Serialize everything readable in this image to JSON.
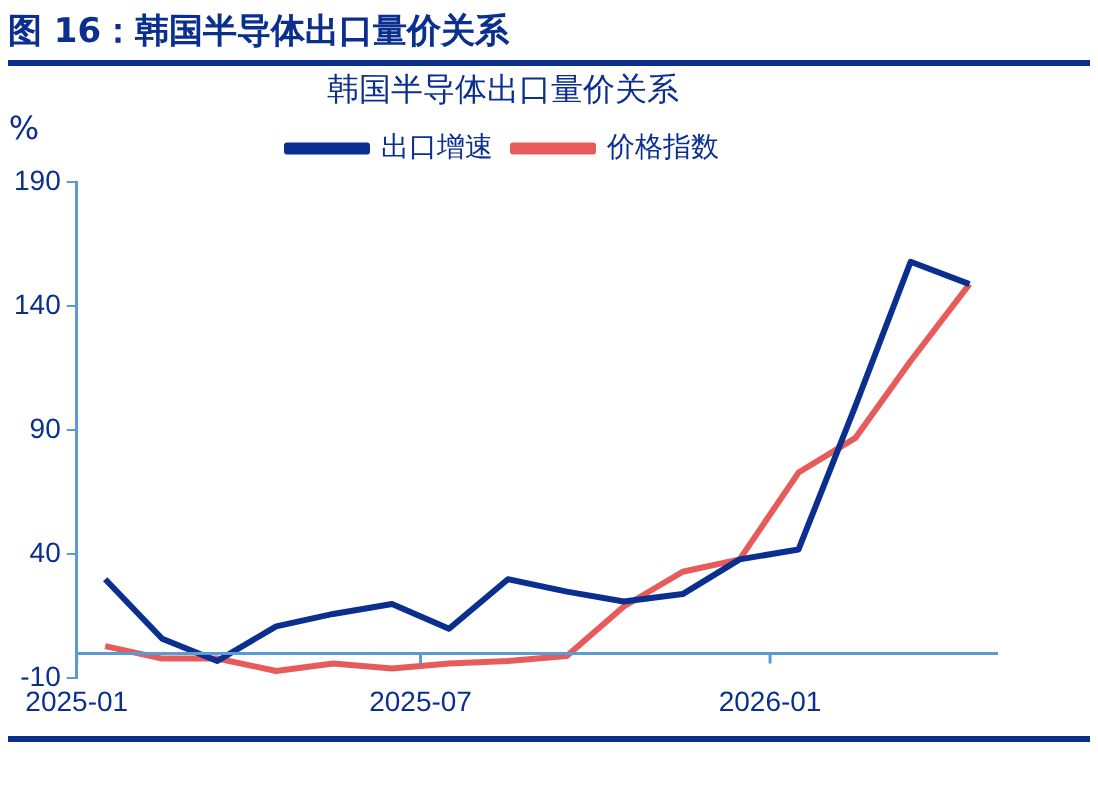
{
  "chart_data": {
    "type": "line",
    "title": "图 16：韩国半导体出口量价关系",
    "subtitle": "韩国半导体出口量价关系",
    "ylabel": "%",
    "x": [
      "2025-01-16",
      "2025-02-15",
      "2025-03-16",
      "2025-04-16",
      "2025-05-16",
      "2025-06-16",
      "2025-07-16",
      "2025-08-16",
      "2025-09-16",
      "2025-10-16",
      "2025-11-16",
      "2025-12-16",
      "2026-01-16",
      "2026-02-15",
      "2026-03-16",
      "2026-04-16"
    ],
    "series": [
      {
        "name": "出口增速",
        "color": "#0a2f8f",
        "values": [
          30,
          6,
          -3,
          11,
          16,
          20,
          10,
          30,
          25,
          21,
          24,
          38,
          42,
          100,
          158,
          149
        ]
      },
      {
        "name": "价格指数",
        "color": "#e85b5b",
        "values": [
          3,
          -2,
          -2,
          -7,
          -4,
          -6,
          -4,
          -3,
          -1,
          19,
          33,
          38,
          73,
          87,
          118,
          149
        ]
      }
    ],
    "xlim": [
      "2025-01-01",
      "2026-05-01"
    ],
    "xticks": [
      "2025-01",
      "2025-07",
      "2026-01"
    ],
    "ylim": [
      -10,
      190
    ],
    "yticks": [
      -10,
      40,
      90,
      140,
      190
    ],
    "grid": false,
    "legend": "top",
    "marker": "none",
    "line_style": "solid"
  }
}
